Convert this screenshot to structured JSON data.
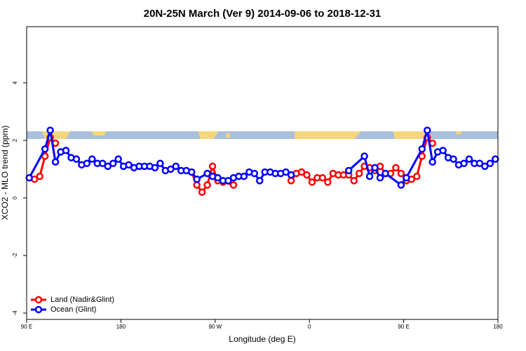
{
  "chart_data": {
    "type": "line",
    "title": "20N-25N March (Ver 9)   2014-09-06 to 2018-12-31",
    "xlabel": "Longitude (deg E)",
    "ylabel": "XCO2 - MLO trend (ppm)",
    "xlim": [
      90,
      540
    ],
    "ylim": [
      -4.22,
      5.95
    ],
    "xticks": [
      {
        "value": 90,
        "label": "90 E"
      },
      180,
      {
        "value": 270,
        "label": "90 W"
      },
      {
        "value": 360,
        "label": "0"
      },
      {
        "value": 450,
        "label": "90 E"
      },
      {
        "value": 540,
        "label": "180"
      }
    ],
    "yticks": [
      -4,
      -2,
      0,
      2,
      4
    ],
    "legend": "bottom-left",
    "series": [
      {
        "name": "Land (Nadir&Glint)",
        "color": "#ff0000",
        "x": [
          97.5,
          102.5,
          107.5,
          112.5,
          117.5,
          182.5,
          247.5,
          252.5,
          257.5,
          262.5,
          267.5,
          272.5,
          277.5,
          287.5,
          317.5,
          342.5,
          347.5,
          352.5,
          357.5,
          362.5,
          367.5,
          372.5,
          377.5,
          382.5,
          387.5,
          392.5,
          397.5,
          402.5,
          407.5,
          412.5,
          417.5,
          422.5,
          427.5,
          432.5,
          437.5,
          442.5,
          447.5,
          452.5,
          457.5,
          462.5,
          467.5,
          472.5,
          477.5
        ],
        "values": [
          0.65,
          0.75,
          1.45,
          2.1,
          1.9,
          null,
          0.9,
          0.45,
          0.2,
          0.45,
          1.1,
          0.6,
          0.55,
          0.45,
          null,
          0.6,
          0.85,
          0.9,
          0.8,
          0.55,
          0.7,
          0.7,
          0.55,
          0.85,
          0.8,
          0.8,
          0.8,
          0.6,
          0.85,
          1.1,
          1.05,
          0.95,
          1.1,
          0.85,
          0.85,
          1.05,
          0.85,
          0.6,
          0.65,
          0.75,
          1.45,
          2.1,
          1.9
        ]
      },
      {
        "name": "Ocean (Glint)",
        "color": "#0000ff",
        "x": [
          92.5,
          107.5,
          112.5,
          117.5,
          122.5,
          127.5,
          132.5,
          137.5,
          142.5,
          147.5,
          152.5,
          157.5,
          162.5,
          167.5,
          172.5,
          177.5,
          182.5,
          187.5,
          192.5,
          197.5,
          202.5,
          207.5,
          212.5,
          217.5,
          222.5,
          227.5,
          232.5,
          237.5,
          242.5,
          247.5,
          252.5,
          262.5,
          267.5,
          272.5,
          277.5,
          282.5,
          287.5,
          292.5,
          297.5,
          302.5,
          307.5,
          312.5,
          317.5,
          322.5,
          327.5,
          332.5,
          337.5,
          342.5,
          367.5,
          397.5,
          412.5,
          417.5,
          422.5,
          427.5,
          432.5,
          447.5,
          452.5,
          467.5,
          472.5,
          477.5,
          482.5,
          487.5,
          492.5,
          497.5,
          502.5,
          507.5,
          512.5,
          517.5,
          522.5,
          527.5,
          532.5,
          537.5
        ],
        "values": [
          0.7,
          1.7,
          2.35,
          1.25,
          1.6,
          1.65,
          1.4,
          1.35,
          1.15,
          1.2,
          1.35,
          1.2,
          1.2,
          1.1,
          1.2,
          1.35,
          1.1,
          1.15,
          1.05,
          1.1,
          1.1,
          1.1,
          1.05,
          1.2,
          0.95,
          1.0,
          1.1,
          0.95,
          0.95,
          0.9,
          0.65,
          0.85,
          0.75,
          0.7,
          0.6,
          0.6,
          0.7,
          0.75,
          0.75,
          0.9,
          0.85,
          0.6,
          0.9,
          0.9,
          0.85,
          0.85,
          0.9,
          0.8,
          null,
          0.95,
          1.45,
          0.75,
          1.05,
          0.7,
          0.85,
          0.45,
          0.7,
          1.7,
          2.35,
          1.25,
          1.6,
          1.65,
          1.4,
          1.35,
          1.15,
          1.2,
          1.35,
          1.2,
          1.2,
          1.1,
          1.2,
          1.35
        ]
      }
    ]
  }
}
